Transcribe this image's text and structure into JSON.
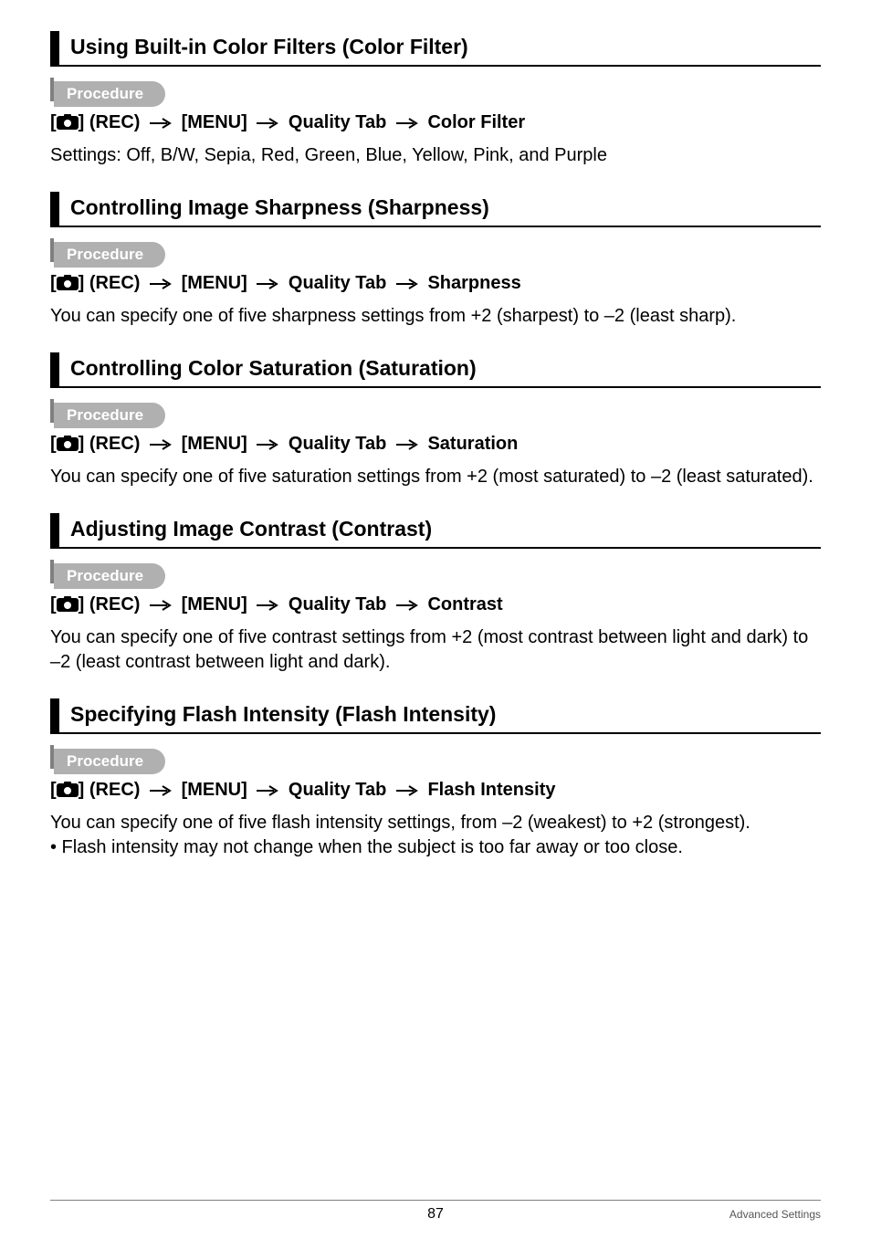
{
  "icons": {
    "camera_svg": "<svg width=\"24\" height=\"17\" viewBox=\"0 0 24 17\"><rect x=\"0\" y=\"2\" width=\"24\" height=\"15\" rx=\"3\" fill=\"#000\"/><rect x=\"8\" y=\"0\" width=\"8\" height=\"4\" rx=\"1\" fill=\"#000\"/><circle cx=\"12\" cy=\"10\" r=\"4\" fill=\"#fff\"/></svg>",
    "arrow_svg": "<svg width=\"26\" height=\"12\" viewBox=\"0 0 26 12\"><line x1=\"1\" y1=\"6\" x2=\"20\" y2=\"6\" stroke=\"#000\" stroke-width=\"2\"/><polyline points=\"15,1 23,6 15,11\" fill=\"none\" stroke=\"#000\" stroke-width=\"2\"/></svg>"
  },
  "labels": {
    "procedure": "Procedure",
    "rec": "] (REC)",
    "menu": "[MENU]",
    "quality_tab": "Quality Tab",
    "open_bracket": "["
  },
  "sections": [
    {
      "heading": "Using Built-in Color Filters (Color Filter)",
      "path_last": "Color Filter",
      "body": "Settings: Off, B/W, Sepia, Red, Green, Blue, Yellow, Pink, and Purple"
    },
    {
      "heading": "Controlling Image Sharpness (Sharpness)",
      "path_last": "Sharpness",
      "body": "You can specify one of five sharpness settings from +2 (sharpest) to –2 (least sharp)."
    },
    {
      "heading": "Controlling Color Saturation (Saturation)",
      "path_last": "Saturation",
      "body": "You can specify one of five saturation settings from +2 (most saturated) to –2 (least saturated)."
    },
    {
      "heading": "Adjusting Image Contrast (Contrast)",
      "path_last": "Contrast",
      "body": "You can specify one of five contrast settings from +2 (most contrast between light and dark) to –2 (least contrast between light and dark)."
    },
    {
      "heading": "Specifying Flash Intensity (Flash Intensity)",
      "path_last": "Flash Intensity",
      "body": "You can specify one of five flash intensity settings, from –2 (weakest) to +2 (strongest).\n• Flash intensity may not change when the subject is too far away or too close."
    }
  ],
  "footer": {
    "page_num": "87",
    "right": "Advanced Settings"
  }
}
